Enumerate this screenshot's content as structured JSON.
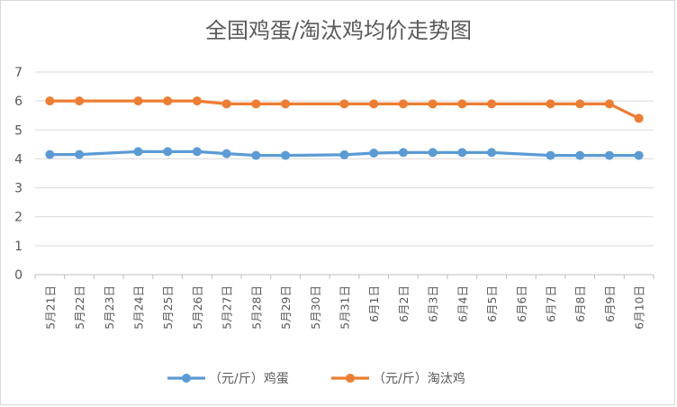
{
  "chart_data": {
    "type": "line",
    "title": "全国鸡蛋/淘汰鸡均价走势图",
    "categories": [
      "5月21日",
      "5月22日",
      "5月23日",
      "5月24日",
      "5月25日",
      "5月26日",
      "5月27日",
      "5月28日",
      "5月29日",
      "5月30日",
      "5月31日",
      "6月1日",
      "6月2日",
      "6月3日",
      "6月4日",
      "6月5日",
      "6月6日",
      "6月7日",
      "6月8日",
      "6月9日",
      "6月10日"
    ],
    "ylim": [
      0,
      7
    ],
    "yticks": [
      0,
      1,
      2,
      3,
      4,
      5,
      6,
      7
    ],
    "grid": true,
    "legend_position": "bottom",
    "series": [
      {
        "name": "（元/斤）鸡蛋",
        "color": "#5b9bd5",
        "values": [
          4.15,
          4.15,
          null,
          4.25,
          4.25,
          4.25,
          4.18,
          4.12,
          4.12,
          null,
          4.14,
          4.2,
          4.22,
          4.22,
          4.22,
          4.22,
          null,
          4.12,
          4.12,
          4.12,
          4.12
        ]
      },
      {
        "name": "（元/斤）淘汰鸡",
        "color": "#ed7d31",
        "values": [
          6.0,
          6.0,
          null,
          6.0,
          6.0,
          6.0,
          5.9,
          5.9,
          5.9,
          null,
          5.9,
          5.9,
          5.9,
          5.9,
          5.9,
          5.9,
          null,
          5.9,
          5.9,
          5.9,
          5.4
        ]
      }
    ]
  }
}
